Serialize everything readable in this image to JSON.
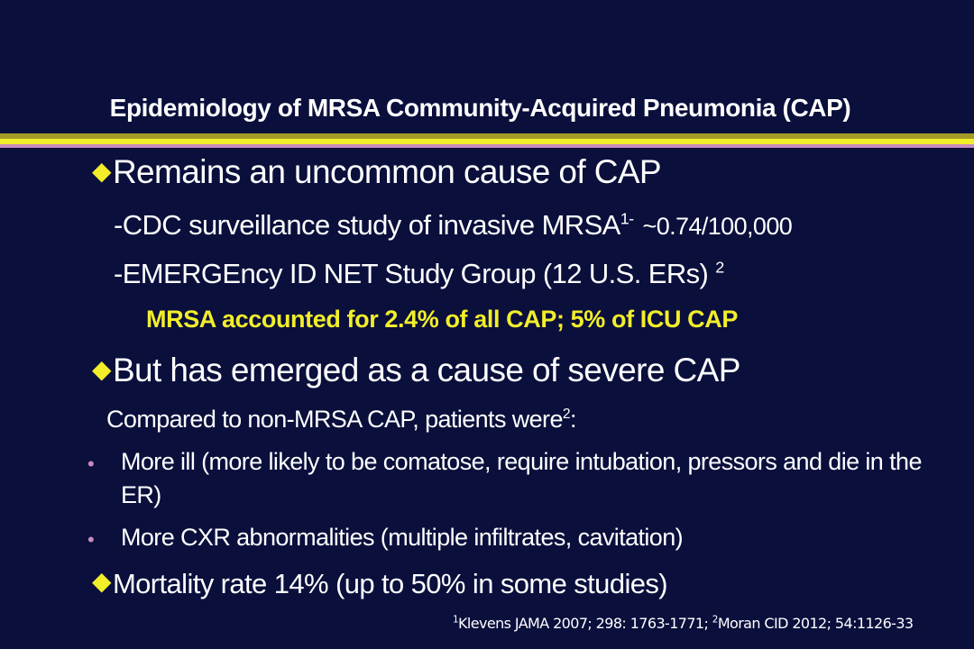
{
  "slide": {
    "title": "Epidemiology of MRSA Community-Acquired Pneumonia (CAP)",
    "bullets": [
      {
        "marker": "◆",
        "text": "Remains an uncommon cause of CAP",
        "sub": [
          {
            "text": "-CDC surveillance study of invasive MRSA",
            "sup": "1-",
            "stat": "~0.74/100,000"
          },
          {
            "text": "-EMERGEncy ID NET Study Group (12 U.S. ERs)",
            "sup": "2"
          }
        ],
        "highlight": "MRSA accounted for 2.4% of all CAP; 5% of ICU CAP"
      },
      {
        "marker": "◆",
        "text": "But has emerged as a cause of severe CAP",
        "intro": {
          "text": "Compared to non-MRSA CAP, patients were",
          "sup": "2",
          "end": ":"
        },
        "points": [
          {
            "marker": "•",
            "line1": "More ill (more likely to be comatose, require intubation, pressors and die in the",
            "line2": "ER)"
          },
          {
            "marker": "•",
            "line1": "More CXR abnormalities (multiple infiltrates, cavitation)"
          }
        ]
      },
      {
        "marker": "◆",
        "text": "Mortality rate 14% (up to 50% in some studies)"
      }
    ],
    "reference": {
      "sup1": "1",
      "ref1": "Klevens JAMA 2007; 298: 1763-1771; ",
      "sup2": "2",
      "ref2": "Moran CID 2012; 54:1126-33"
    },
    "colors": {
      "background": "#0a0f3c",
      "accent_yellow": "#f2ee2a",
      "accent_olive": "#a49a26",
      "accent_pink": "#c98bbf",
      "text": "#ffffff"
    }
  }
}
